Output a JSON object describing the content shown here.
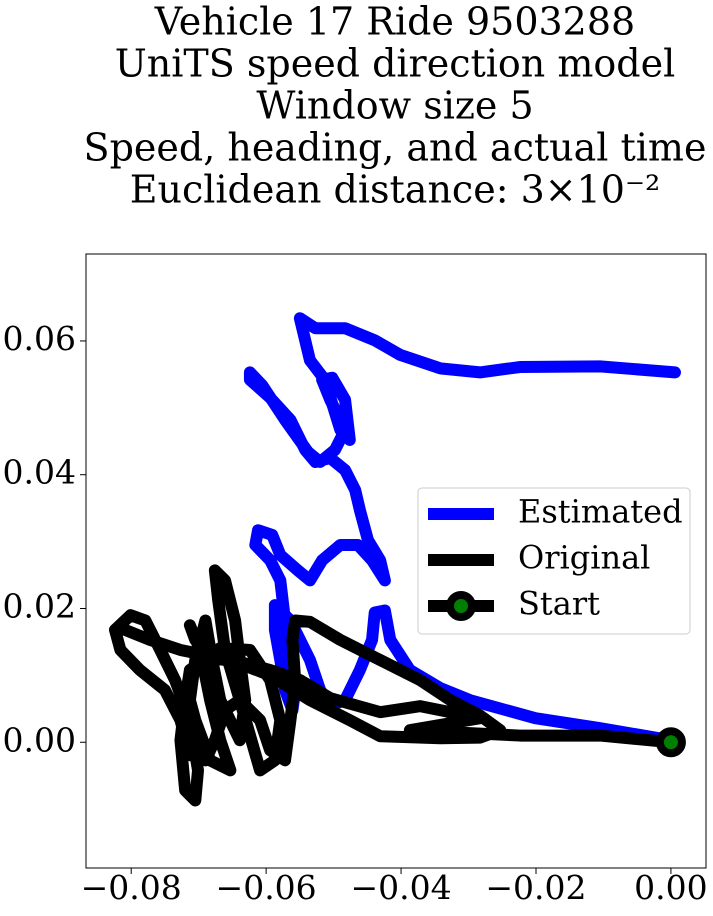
{
  "chart_data": {
    "type": "line",
    "title": [
      "Vehicle 17 Ride 9503288",
      "UniTS speed direction model",
      "Window size 5",
      "Speed, heading, and actual time",
      "Euclidean distance: 3×10⁻²"
    ],
    "xlim": [
      -0.0867,
      0.0052
    ],
    "ylim": [
      -0.0188,
      0.073
    ],
    "xticks": [
      {
        "value": -0.08,
        "label": "−0.08"
      },
      {
        "value": -0.06,
        "label": "−0.06"
      },
      {
        "value": -0.04,
        "label": "−0.04"
      },
      {
        "value": -0.02,
        "label": "−0.02"
      },
      {
        "value": 0,
        "label": "0.00"
      }
    ],
    "yticks": [
      {
        "value": 0,
        "label": "0.00"
      },
      0.02,
      0.04,
      0.06
    ],
    "grid": false,
    "legend": "center right",
    "series": [
      {
        "name": "Estimated",
        "color": "#0000ff",
        "x": [
          0,
          -0.0105,
          -0.0201,
          -0.0298,
          -0.0342,
          -0.0387,
          -0.0416,
          -0.0424,
          -0.0439,
          -0.0443,
          -0.0461,
          -0.0483,
          -0.0505,
          -0.052,
          -0.0535,
          -0.0564,
          -0.0587,
          -0.0587,
          -0.0579,
          -0.0572,
          -0.0561,
          -0.0557,
          -0.0564,
          -0.0572,
          -0.0579,
          -0.0594,
          -0.0616,
          -0.0612,
          -0.0591,
          -0.0579,
          -0.0553,
          -0.0535,
          -0.0517,
          -0.049,
          -0.0464,
          -0.0443,
          -0.0424,
          -0.0431,
          -0.0449,
          -0.0461,
          -0.0468,
          -0.0483,
          -0.0505,
          -0.0527,
          -0.0542,
          -0.0564,
          -0.0594,
          -0.0624,
          -0.0624,
          -0.0606,
          -0.0572,
          -0.0538,
          -0.052,
          -0.0498,
          -0.0483,
          -0.0505,
          -0.0517,
          -0.0502,
          -0.0483,
          -0.0476,
          -0.049,
          -0.0513,
          -0.0535,
          -0.055,
          -0.0527,
          -0.0483,
          -0.0439,
          -0.0401,
          -0.0342,
          -0.0283,
          -0.0224,
          -0.0105,
          0.0006
        ],
        "values": [
          0.0003,
          0.0021,
          0.0036,
          0.0063,
          0.0081,
          0.0108,
          0.0153,
          0.0197,
          0.0194,
          0.0153,
          0.0108,
          0.0063,
          0.0055,
          0.0078,
          0.0123,
          0.0182,
          0.0205,
          0.0168,
          0.0123,
          0.0078,
          0.0048,
          0.0078,
          0.0123,
          0.0182,
          0.0242,
          0.0272,
          0.0295,
          0.0317,
          0.031,
          0.028,
          0.0257,
          0.0242,
          0.0272,
          0.0295,
          0.0295,
          0.0272,
          0.0242,
          0.0272,
          0.0302,
          0.0347,
          0.0377,
          0.0407,
          0.0425,
          0.0419,
          0.0437,
          0.0482,
          0.0515,
          0.0542,
          0.0553,
          0.0534,
          0.0482,
          0.0434,
          0.0419,
          0.0437,
          0.0467,
          0.0512,
          0.0542,
          0.0545,
          0.0512,
          0.0452,
          0.0467,
          0.0542,
          0.0571,
          0.0634,
          0.0619,
          0.0619,
          0.0601,
          0.0579,
          0.0559,
          0.0553,
          0.0561,
          0.0562,
          0.0553
        ]
      },
      {
        "name": "Original",
        "color": "#000000",
        "x": [
          0,
          -0.0105,
          -0.0224,
          -0.0387,
          -0.0283,
          -0.0372,
          -0.0431,
          -0.0505,
          -0.055,
          -0.0594,
          -0.0639,
          -0.0683,
          -0.0705,
          -0.0713,
          -0.0698,
          -0.0683,
          -0.0668,
          -0.0653,
          -0.0683,
          -0.0705,
          -0.0713,
          -0.0705,
          -0.069,
          -0.068,
          -0.0668,
          -0.0639,
          -0.0631,
          -0.0639,
          -0.0646,
          -0.0661,
          -0.0676,
          -0.0671,
          -0.0661,
          -0.0639,
          -0.0609,
          -0.0587,
          -0.0579,
          -0.0594,
          -0.0624,
          -0.0668,
          -0.0713,
          -0.072,
          -0.0727,
          -0.072,
          -0.0705,
          -0.0701,
          -0.0713,
          -0.0735,
          -0.0757,
          -0.0779,
          -0.0801,
          -0.0824,
          -0.0816,
          -0.0787,
          -0.075,
          -0.0727,
          -0.0713,
          -0.069,
          -0.0676,
          -0.0661,
          -0.0639,
          -0.0609,
          -0.0594,
          -0.0572,
          -0.0564,
          -0.0557,
          -0.0561,
          -0.0557,
          -0.0535,
          -0.049,
          -0.0431,
          -0.0372,
          -0.0327,
          -0.0283,
          -0.0253,
          -0.0283,
          -0.0342,
          -0.0431,
          -0.0476,
          -0.0535,
          -0.0594,
          -0.0653,
          -0.0727,
          -0.0772,
          -0.0809
        ],
        "values": [
          0,
          0.001,
          0.001,
          0.0018,
          0.0036,
          0.0054,
          0.0045,
          0.0066,
          0.0093,
          0.0108,
          0.012,
          0.0126,
          0.0153,
          0.0175,
          0.0138,
          0.0063,
          0.0003,
          -0.0042,
          -0.0027,
          0.0033,
          0.0063,
          0.0123,
          0.0182,
          0.0123,
          0.0063,
          0.0003,
          0.0063,
          0.0123,
          0.0182,
          0.0242,
          0.0257,
          0.0212,
          0.0138,
          0.0063,
          -0.0042,
          -0.0027,
          0.0033,
          0.0093,
          0.0138,
          0.0141,
          0.0108,
          0.0063,
          0.0003,
          -0.0072,
          -0.0087,
          -0.0042,
          0.0033,
          0.0093,
          0.0138,
          0.0182,
          0.019,
          0.0168,
          0.0138,
          0.0108,
          0.0078,
          0.0033,
          -0.0019,
          -0.0027,
          0.0003,
          0.0048,
          0.0063,
          0.0033,
          -0.0012,
          -0.0027,
          0.0033,
          0.0093,
          0.0153,
          0.0182,
          0.018,
          0.0153,
          0.0123,
          0.0093,
          0.0063,
          0.004,
          0.0018,
          0.0007,
          0.0006,
          0.0009,
          0.0033,
          0.0063,
          0.01,
          0.0123,
          0.0138,
          0.0153,
          0.0168
        ]
      },
      {
        "name": "Start",
        "color": "#000000",
        "marker_color": "#008000",
        "x": [
          0
        ],
        "values": [
          0
        ]
      }
    ]
  }
}
